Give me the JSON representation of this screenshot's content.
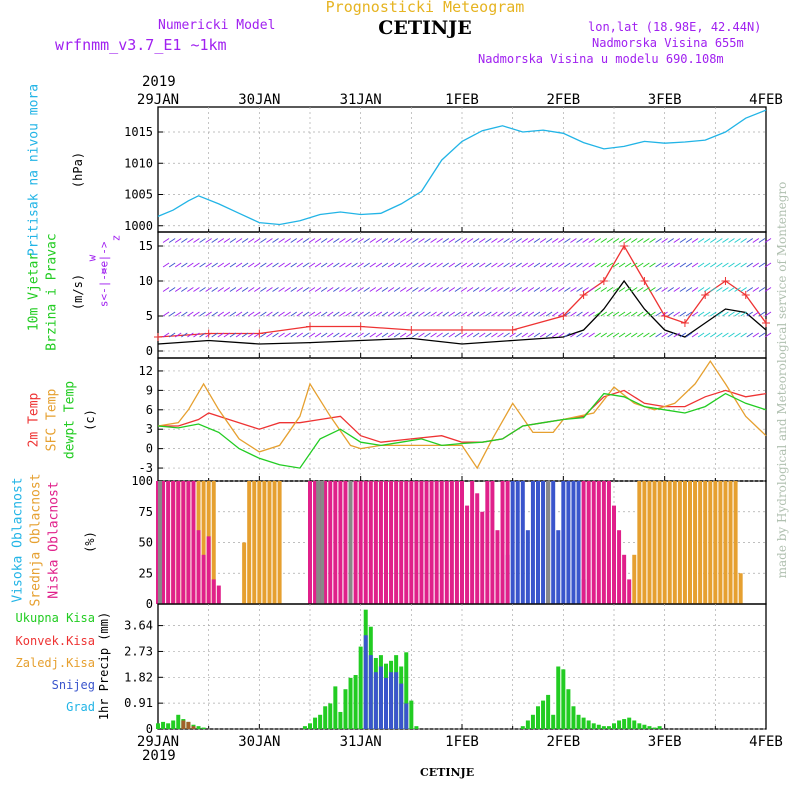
{
  "header": {
    "top_title": "Prognosticki Meteogram",
    "station": "CETINJE",
    "model_line1": "Numericki Model",
    "model_line2": "wrfnmm_v3.7_E1 ~1km",
    "coords": "lon,lat (18.98E, 42.44N)",
    "altitude": "Nadmorska Visina 655m",
    "model_altitude": "Nadmorska Visina u modelu 690.108m",
    "year_top": "2019",
    "year_bottom": "2019",
    "footer_station": "CETINJE",
    "watermark": "made by Hydrological and Meteorological service of Montenegro"
  },
  "colors": {
    "purple": "#a020f0",
    "gold": "#e6b422",
    "cyan": "#22b4e6",
    "green": "#22cc22",
    "red": "#ee3333",
    "orange": "#e6a030",
    "magenta": "#e0208a",
    "blue": "#3a55cc",
    "gray": "#888888",
    "watermark": "#b0c0b0"
  },
  "chart_data": [
    {
      "type": "line",
      "panel": "pressure",
      "ylabel_main": "Pritisak na nivou mora",
      "ylabel_unit": "(hPa)",
      "x_ticks": [
        "29JAN",
        "30JAN",
        "31JAN",
        "1FEB",
        "2FEB",
        "3FEB",
        "4FEB"
      ],
      "yticks": [
        "1000",
        "1005",
        "1010",
        "1015"
      ],
      "ylim": [
        999,
        1019
      ],
      "series": [
        {
          "color": "#22b4e6",
          "x": [
            0,
            0.15,
            0.3,
            0.4,
            0.6,
            0.8,
            1.0,
            1.2,
            1.4,
            1.6,
            1.8,
            2.0,
            2.2,
            2.4,
            2.6,
            2.8,
            3.0,
            3.2,
            3.4,
            3.6,
            3.8,
            4.0,
            4.2,
            4.4,
            4.6,
            4.8,
            5.0,
            5.2,
            5.4,
            5.6,
            5.8,
            6.0
          ],
          "values": [
            1001.5,
            1002.5,
            1004.0,
            1004.8,
            1003.5,
            1002.0,
            1000.5,
            1000.2,
            1000.8,
            1001.8,
            1002.2,
            1001.8,
            1002.0,
            1003.5,
            1005.5,
            1010.5,
            1013.5,
            1015.2,
            1016.0,
            1015.0,
            1015.3,
            1014.8,
            1013.3,
            1012.3,
            1012.7,
            1013.5,
            1013.2,
            1013.4,
            1013.7,
            1015.0,
            1017.2,
            1018.5
          ]
        }
      ]
    },
    {
      "type": "line",
      "panel": "wind",
      "ylabel_main1": "10m Vjetar",
      "ylabel_main2": "Brzina i Pravac",
      "ylabel_unit": "(m/s)",
      "ylabel_sym1": "w",
      "ylabel_sym2": "<-|->",
      "ylabel_sym3": "z",
      "ylabel_sym4": "s<-|->e",
      "yticks": [
        "0",
        "5",
        "10",
        "15"
      ],
      "ylim": [
        -1,
        17
      ],
      "series": [
        {
          "name": "mean",
          "color": "#000000",
          "x": [
            0,
            0.5,
            1.0,
            1.5,
            2.0,
            2.5,
            3.0,
            3.5,
            4.0,
            4.2,
            4.4,
            4.6,
            4.8,
            5.0,
            5.2,
            5.4,
            5.6,
            5.8,
            6.0
          ],
          "values": [
            1.0,
            1.5,
            1.0,
            1.2,
            1.5,
            1.8,
            1.0,
            1.5,
            2.0,
            3.0,
            6.0,
            10.0,
            6.0,
            3.0,
            2.0,
            4.0,
            6.0,
            5.5,
            3.0
          ]
        },
        {
          "name": "gust",
          "color": "#ee3333",
          "x": [
            0,
            0.5,
            1.0,
            1.5,
            2.0,
            2.5,
            3.0,
            3.5,
            4.0,
            4.2,
            4.4,
            4.6,
            4.8,
            5.0,
            5.2,
            5.4,
            5.6,
            5.8,
            6.0
          ],
          "values": [
            2.0,
            2.5,
            2.5,
            3.5,
            3.5,
            3.0,
            3.0,
            3.0,
            5.0,
            8.0,
            10.0,
            15.0,
            10.0,
            5.0,
            4.0,
            8.0,
            10.0,
            8.0,
            4.0
          ]
        }
      ]
    },
    {
      "type": "line",
      "panel": "temperature",
      "ylabel_main1": "2m Temp",
      "ylabel_main2": "SFC Temp",
      "ylabel_main3": "dewpt Temp",
      "ylabel_unit": "(c)",
      "yticks": [
        "-3",
        "0",
        "3",
        "6",
        "9",
        "12"
      ],
      "ylim": [
        -5,
        14
      ],
      "series": [
        {
          "name": "2m Temp",
          "color": "#ee3333",
          "x": [
            0,
            0.2,
            0.4,
            0.5,
            0.7,
            0.9,
            1.0,
            1.2,
            1.4,
            1.6,
            1.8,
            2.0,
            2.2,
            2.5,
            2.8,
            3.0,
            3.2,
            3.4,
            3.6,
            3.8,
            4.0,
            4.2,
            4.4,
            4.6,
            4.8,
            5.0,
            5.2,
            5.4,
            5.6,
            5.8,
            6.0
          ],
          "values": [
            3.5,
            3.5,
            4.5,
            5.5,
            4.5,
            3.5,
            3.0,
            4.0,
            4.0,
            4.5,
            5.0,
            2.0,
            1.0,
            1.5,
            2.0,
            1.0,
            1.0,
            1.5,
            3.5,
            4.0,
            4.5,
            5.0,
            8.0,
            9.0,
            7.0,
            6.5,
            6.5,
            8.0,
            9.0,
            8.0,
            8.5
          ]
        },
        {
          "name": "SFC Temp",
          "color": "#e6a030",
          "x": [
            0,
            0.2,
            0.3,
            0.45,
            0.6,
            0.8,
            1.0,
            1.2,
            1.4,
            1.5,
            1.7,
            1.9,
            2.0,
            2.2,
            2.5,
            2.8,
            3.0,
            3.15,
            3.3,
            3.5,
            3.7,
            3.9,
            4.0,
            4.3,
            4.5,
            4.7,
            4.9,
            5.1,
            5.3,
            5.45,
            5.6,
            5.8,
            6.0
          ],
          "values": [
            3.5,
            4.0,
            6.0,
            10.0,
            6.0,
            1.5,
            -0.5,
            0.5,
            5.0,
            10.0,
            5.0,
            0.5,
            0.0,
            0.5,
            0.5,
            0.5,
            0.5,
            -3.0,
            1.5,
            7.0,
            2.5,
            2.5,
            4.5,
            5.5,
            9.5,
            7.0,
            6.0,
            7.0,
            10.0,
            13.5,
            10.0,
            5.0,
            2.0
          ]
        },
        {
          "name": "dewpt Temp",
          "color": "#22cc22",
          "x": [
            0,
            0.2,
            0.4,
            0.6,
            0.8,
            1.0,
            1.2,
            1.4,
            1.6,
            1.8,
            2.0,
            2.2,
            2.4,
            2.6,
            2.8,
            3.0,
            3.2,
            3.4,
            3.6,
            3.8,
            4.0,
            4.2,
            4.4,
            4.6,
            4.8,
            5.0,
            5.2,
            5.4,
            5.6,
            5.8,
            6.0
          ],
          "values": [
            3.5,
            3.2,
            3.8,
            2.5,
            0.0,
            -1.5,
            -2.5,
            -3.0,
            1.5,
            3.0,
            1.0,
            0.5,
            1.0,
            1.5,
            0.5,
            0.8,
            1.0,
            1.5,
            3.5,
            4.0,
            4.5,
            4.8,
            8.5,
            8.0,
            6.5,
            6.0,
            5.5,
            6.5,
            8.5,
            7.0,
            6.0
          ]
        }
      ]
    },
    {
      "type": "bar",
      "panel": "cloud",
      "ylabel_main1": "Visoka Oblacnost",
      "ylabel_main2": "Srednja Oblacnost",
      "ylabel_main3": "Niska Oblacnost",
      "ylabel_unit": "(%)",
      "yticks": [
        "0",
        "25",
        "50",
        "75",
        "100"
      ],
      "ylim": [
        0,
        100
      ],
      "series": [
        {
          "name": "Visoka Oblacnost",
          "color": "#3a55cc",
          "x": [
            3.4,
            3.45,
            3.5,
            3.55,
            3.6,
            3.65,
            3.7,
            3.75,
            3.8,
            3.85,
            3.9,
            3.95,
            4.0,
            4.05,
            4.1,
            4.15,
            4.2
          ],
          "values": [
            20,
            40,
            100,
            100,
            100,
            60,
            100,
            100,
            100,
            100,
            100,
            60,
            100,
            100,
            100,
            100,
            20
          ]
        },
        {
          "name": "Srednja Oblacnost",
          "color": "#e6a030",
          "x": [
            0.15,
            0.2,
            0.25,
            0.3,
            0.35,
            0.4,
            0.45,
            0.5,
            0.55,
            0.85,
            0.9,
            0.95,
            1.0,
            1.05,
            1.1,
            1.15,
            1.2,
            4.7,
            4.75,
            4.8,
            4.85,
            4.9,
            4.95,
            5.0,
            5.05,
            5.1,
            5.15,
            5.2,
            5.25,
            5.3,
            5.35,
            5.4,
            5.45,
            5.5,
            5.55,
            5.6,
            5.65,
            5.7,
            5.75
          ],
          "values": [
            100,
            100,
            100,
            100,
            100,
            100,
            100,
            100,
            100,
            50,
            100,
            100,
            100,
            100,
            100,
            100,
            100,
            40,
            100,
            100,
            100,
            100,
            100,
            100,
            100,
            100,
            100,
            100,
            100,
            100,
            100,
            100,
            100,
            100,
            100,
            100,
            100,
            100,
            25
          ]
        },
        {
          "name": "Niska Oblacnost",
          "color": "#e0208a",
          "x": [
            0.0,
            0.05,
            0.1,
            0.15,
            0.2,
            0.25,
            0.3,
            0.35,
            0.4,
            0.45,
            0.5,
            0.55,
            0.6,
            1.5,
            1.55,
            1.6,
            1.65,
            1.7,
            1.75,
            1.8,
            1.85,
            1.9,
            1.95,
            2.0,
            2.05,
            2.1,
            2.15,
            2.2,
            2.25,
            2.3,
            2.35,
            2.4,
            2.45,
            2.5,
            2.55,
            2.6,
            2.65,
            2.7,
            2.75,
            2.8,
            2.85,
            2.9,
            2.95,
            3.0,
            3.05,
            3.1,
            3.15,
            3.2,
            3.25,
            3.3,
            3.35,
            3.4,
            3.45,
            4.2,
            4.25,
            4.3,
            4.35,
            4.4,
            4.45,
            4.5,
            4.55,
            4.6,
            4.65
          ],
          "values": [
            100,
            100,
            100,
            100,
            100,
            100,
            100,
            100,
            60,
            40,
            55,
            20,
            15,
            100,
            100,
            100,
            100,
            100,
            100,
            100,
            100,
            100,
            100,
            100,
            100,
            100,
            100,
            100,
            100,
            100,
            100,
            100,
            100,
            100,
            100,
            100,
            100,
            100,
            100,
            100,
            100,
            100,
            100,
            100,
            80,
            100,
            90,
            75,
            100,
            100,
            60,
            100,
            100,
            100,
            100,
            100,
            100,
            100,
            100,
            80,
            60,
            40,
            20
          ]
        },
        {
          "name": "overlap",
          "color": "#888888",
          "x": [
            0.02,
            1.58,
            1.62,
            1.9,
            3.85
          ],
          "values": [
            100,
            100,
            100,
            100,
            100
          ]
        }
      ]
    },
    {
      "type": "bar",
      "panel": "precip",
      "ylabel_main": "1hr Precip (mm)",
      "legend": [
        "Ukupna Kisa",
        "Konvek.Kisa",
        "Zaledj.Kisa",
        "Snijeg",
        "Grad"
      ],
      "legend_colors": [
        "#22cc22",
        "#ee3333",
        "#e6a030",
        "#3a55cc",
        "#22b4e6"
      ],
      "yticks": [
        "0",
        "0.91",
        "1.82",
        "2.73",
        "3.64"
      ],
      "ylim": [
        0,
        4.4
      ],
      "series": [
        {
          "name": "Ukupna Kisa",
          "color": "#22cc22",
          "x": [
            0.0,
            0.05,
            0.1,
            0.15,
            0.2,
            0.25,
            0.3,
            0.35,
            0.4,
            0.45,
            1.45,
            1.5,
            1.55,
            1.6,
            1.65,
            1.7,
            1.75,
            1.8,
            1.85,
            1.9,
            1.95,
            2.0,
            2.05,
            2.1,
            2.15,
            2.2,
            2.25,
            2.3,
            2.35,
            2.4,
            2.45,
            2.5,
            2.55,
            3.6,
            3.65,
            3.7,
            3.75,
            3.8,
            3.85,
            3.9,
            3.95,
            4.0,
            4.05,
            4.1,
            4.15,
            4.2,
            4.25,
            4.3,
            4.35,
            4.4,
            4.45,
            4.5,
            4.55,
            4.6,
            4.65,
            4.7,
            4.75,
            4.8,
            4.85,
            4.9,
            4.95
          ],
          "values": [
            0.2,
            0.25,
            0.2,
            0.3,
            0.5,
            0.35,
            0.25,
            0.15,
            0.1,
            0.05,
            0.1,
            0.2,
            0.4,
            0.5,
            0.8,
            0.9,
            1.5,
            0.6,
            1.4,
            1.8,
            1.9,
            2.9,
            4.2,
            3.6,
            2.5,
            2.6,
            2.3,
            2.4,
            2.6,
            2.2,
            2.7,
            1.0,
            0.1,
            0.1,
            0.3,
            0.5,
            0.8,
            1.0,
            1.2,
            0.5,
            2.2,
            2.1,
            1.4,
            0.8,
            0.5,
            0.4,
            0.3,
            0.2,
            0.15,
            0.1,
            0.1,
            0.2,
            0.3,
            0.35,
            0.4,
            0.3,
            0.2,
            0.15,
            0.1,
            0.05,
            0.1
          ]
        },
        {
          "name": "Snijeg",
          "color": "#3a55cc",
          "x": [
            2.05,
            2.1,
            2.15,
            2.2,
            2.25,
            2.3,
            2.35,
            2.4,
            2.45
          ],
          "values": [
            3.3,
            2.6,
            2.0,
            2.2,
            1.8,
            2.0,
            2.0,
            1.6,
            0.9
          ]
        },
        {
          "name": "Zaledj.Kisa",
          "color": "#a0602a",
          "x": [
            0.25,
            0.3,
            0.35
          ],
          "values": [
            0.3,
            0.25,
            0.1
          ]
        }
      ]
    }
  ]
}
